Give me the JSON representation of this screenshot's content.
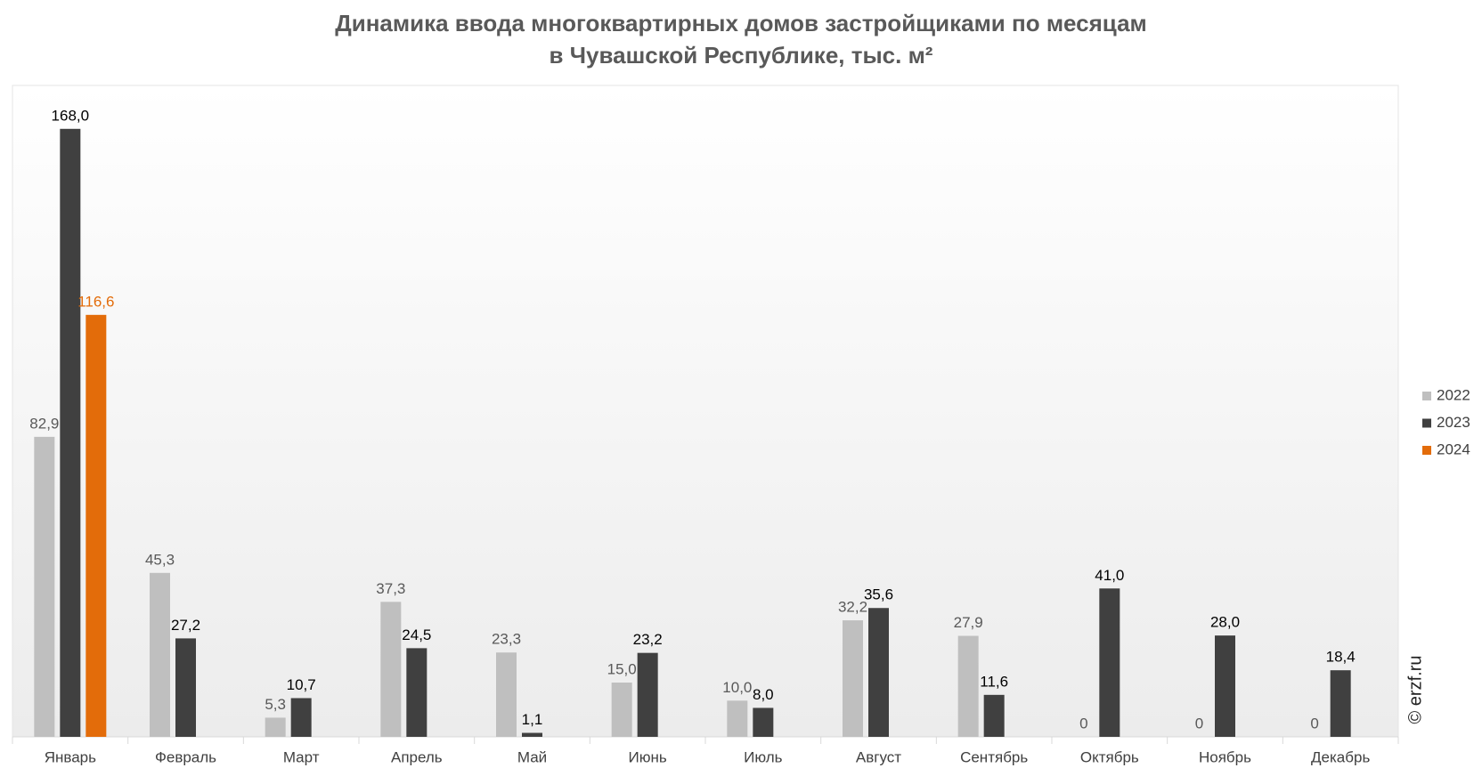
{
  "chart_data": {
    "type": "bar",
    "title": "Динамика ввода многоквартирных домов застройщиками по месяцам",
    "subtitle": "в Чувашской Республике, тыс. м²",
    "watermark": "© erzf.ru",
    "categories": [
      "Январь",
      "Февраль",
      "Март",
      "Апрель",
      "Май",
      "Июнь",
      "Июль",
      "Август",
      "Сентябрь",
      "Октябрь",
      "Ноябрь",
      "Декабрь"
    ],
    "series": [
      {
        "name": "2022",
        "color": "#bfbfbf",
        "label_color": "#595959",
        "values": [
          82.9,
          45.3,
          5.3,
          37.3,
          23.3,
          15.0,
          10.0,
          32.2,
          27.9,
          0,
          0,
          0
        ],
        "value_labels": [
          "82,9",
          "45,3",
          "5,3",
          "37,3",
          "23,3",
          "15,0",
          "10,0",
          "32,2",
          "27,9",
          "0",
          "0",
          "0"
        ]
      },
      {
        "name": "2023",
        "color": "#404040",
        "label_color": "#000000",
        "values": [
          168.0,
          27.2,
          10.7,
          24.5,
          1.1,
          23.2,
          8.0,
          35.6,
          11.6,
          41.0,
          28.0,
          18.4
        ],
        "value_labels": [
          "168,0",
          "27,2",
          "10,7",
          "24,5",
          "1,1",
          "23,2",
          "8,0",
          "35,6",
          "11,6",
          "41,0",
          "28,0",
          "18,4"
        ]
      },
      {
        "name": "2024",
        "color": "#e36c0a",
        "label_color": "#e36c0a",
        "values": [
          116.6,
          null,
          null,
          null,
          null,
          null,
          null,
          null,
          null,
          null,
          null,
          null
        ],
        "value_labels": [
          "116,6",
          null,
          null,
          null,
          null,
          null,
          null,
          null,
          null,
          null,
          null,
          null
        ]
      }
    ],
    "ylim": [
      0,
      180
    ],
    "legend": "right"
  }
}
